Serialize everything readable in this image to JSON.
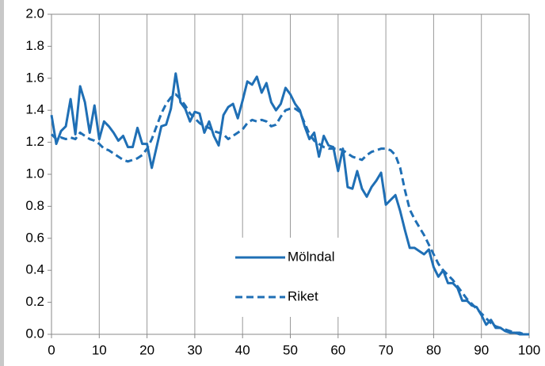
{
  "chart_data": {
    "type": "line",
    "x": [
      0,
      1,
      2,
      3,
      4,
      5,
      6,
      7,
      8,
      9,
      10,
      11,
      12,
      13,
      14,
      15,
      16,
      17,
      18,
      19,
      20,
      21,
      22,
      23,
      24,
      25,
      26,
      27,
      28,
      29,
      30,
      31,
      32,
      33,
      34,
      35,
      36,
      37,
      38,
      39,
      40,
      41,
      42,
      43,
      44,
      45,
      46,
      47,
      48,
      49,
      50,
      51,
      52,
      53,
      54,
      55,
      56,
      57,
      58,
      59,
      60,
      61,
      62,
      63,
      64,
      65,
      66,
      67,
      68,
      69,
      70,
      71,
      72,
      73,
      74,
      75,
      76,
      77,
      78,
      79,
      80,
      81,
      82,
      83,
      84,
      85,
      86,
      87,
      88,
      89,
      90,
      91,
      92,
      93,
      94,
      95,
      96,
      97,
      98,
      99,
      100
    ],
    "series": [
      {
        "name": "Mölndal",
        "color": "#1f6fb5",
        "style": "solid",
        "values": [
          1.37,
          1.19,
          1.27,
          1.3,
          1.47,
          1.25,
          1.55,
          1.45,
          1.26,
          1.43,
          1.22,
          1.33,
          1.3,
          1.26,
          1.21,
          1.24,
          1.17,
          1.17,
          1.29,
          1.19,
          1.19,
          1.04,
          1.17,
          1.3,
          1.31,
          1.41,
          1.63,
          1.45,
          1.41,
          1.33,
          1.39,
          1.38,
          1.26,
          1.33,
          1.24,
          1.18,
          1.37,
          1.42,
          1.44,
          1.35,
          1.46,
          1.58,
          1.56,
          1.61,
          1.51,
          1.57,
          1.45,
          1.4,
          1.44,
          1.54,
          1.5,
          1.44,
          1.4,
          1.3,
          1.22,
          1.26,
          1.11,
          1.24,
          1.18,
          1.17,
          1.02,
          1.16,
          0.92,
          0.91,
          1.02,
          0.91,
          0.86,
          0.92,
          0.96,
          1.01,
          0.81,
          0.84,
          0.87,
          0.77,
          0.65,
          0.54,
          0.54,
          0.52,
          0.5,
          0.53,
          0.42,
          0.36,
          0.4,
          0.32,
          0.32,
          0.29,
          0.21,
          0.21,
          0.18,
          0.17,
          0.12,
          0.06,
          0.09,
          0.04,
          0.04,
          0.02,
          0.01,
          0.01,
          0.0,
          0.0,
          0.0
        ]
      },
      {
        "name": "Riket",
        "color": "#1f6fb5",
        "style": "dashed",
        "values": [
          1.25,
          1.22,
          1.23,
          1.22,
          1.23,
          1.22,
          1.26,
          1.24,
          1.22,
          1.21,
          1.19,
          1.16,
          1.15,
          1.13,
          1.11,
          1.09,
          1.08,
          1.09,
          1.1,
          1.12,
          1.16,
          1.22,
          1.3,
          1.38,
          1.44,
          1.48,
          1.5,
          1.47,
          1.43,
          1.38,
          1.35,
          1.32,
          1.3,
          1.29,
          1.27,
          1.26,
          1.25,
          1.22,
          1.24,
          1.26,
          1.28,
          1.32,
          1.34,
          1.33,
          1.34,
          1.33,
          1.3,
          1.31,
          1.36,
          1.4,
          1.41,
          1.41,
          1.39,
          1.32,
          1.25,
          1.21,
          1.19,
          1.17,
          1.16,
          1.16,
          1.16,
          1.15,
          1.13,
          1.11,
          1.1,
          1.09,
          1.12,
          1.14,
          1.15,
          1.16,
          1.16,
          1.15,
          1.12,
          1.04,
          0.9,
          0.78,
          0.72,
          0.67,
          0.62,
          0.56,
          0.5,
          0.44,
          0.4,
          0.37,
          0.34,
          0.3,
          0.26,
          0.22,
          0.19,
          0.16,
          0.13,
          0.1,
          0.07,
          0.05,
          0.04,
          0.03,
          0.02,
          0.01,
          0.01,
          0.0,
          0.0
        ]
      }
    ],
    "xlim": [
      0,
      100
    ],
    "xticks": [
      0,
      10,
      20,
      30,
      40,
      50,
      60,
      70,
      80,
      90,
      100
    ],
    "ylim": [
      0,
      2
    ],
    "yticks": [
      {
        "value": 0,
        "label": "0.0"
      },
      0.2,
      0.4,
      0.6,
      0.8,
      {
        "value": 1,
        "label": "1.0"
      },
      1.2,
      1.4,
      1.6,
      1.8,
      {
        "value": 2,
        "label": "2.0"
      }
    ],
    "grid": "x",
    "legend": "lower center"
  }
}
